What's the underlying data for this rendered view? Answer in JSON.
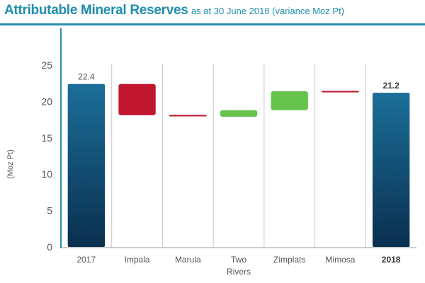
{
  "header": {
    "title": "Attributable Mineral Reserves",
    "subtitle": "as at 30 June 2018 (variance Moz Pt)"
  },
  "chart_data": {
    "type": "bar",
    "title": "Attributable Mineral Reserves",
    "subtitle": "as at 30 June 2018 (variance Moz Pt)",
    "xlabel": "",
    "ylabel": "(Moz Pt)",
    "ylim": [
      0,
      25
    ],
    "yticks": [
      "0",
      "5",
      "10",
      "15",
      "20",
      "25"
    ],
    "grid": false,
    "categories": [
      {
        "label": "2017",
        "line2": "",
        "kind": "total",
        "start": 0,
        "end": 22.4,
        "data_label": "22.4",
        "bold": false
      },
      {
        "label": "Impala",
        "line2": "",
        "kind": "decrease",
        "start": 22.4,
        "end": 18.1,
        "data_label": "",
        "bold": false
      },
      {
        "label": "Marula",
        "line2": "",
        "kind": "decrease",
        "start": 18.1,
        "end": 17.9,
        "data_label": "",
        "bold": false
      },
      {
        "label": "Two",
        "line2": "Rivers",
        "kind": "increase",
        "start": 17.9,
        "end": 18.8,
        "data_label": "",
        "bold": false
      },
      {
        "label": "Zimplats",
        "line2": "",
        "kind": "increase",
        "start": 18.8,
        "end": 21.4,
        "data_label": "",
        "bold": false
      },
      {
        "label": "Mimosa",
        "line2": "",
        "kind": "decrease",
        "start": 21.4,
        "end": 21.2,
        "data_label": "",
        "bold": false
      },
      {
        "label": "2018",
        "line2": "",
        "kind": "total",
        "start": 0,
        "end": 21.2,
        "data_label": "21.2",
        "bold": true
      }
    ],
    "colors": {
      "total_top": "#1b6f99",
      "total_bottom": "#0a2f4f",
      "increase": "#66c44c",
      "decrease": "#c0172f",
      "axis": "#2a8fb3",
      "divider": "#c7c7c7"
    }
  }
}
